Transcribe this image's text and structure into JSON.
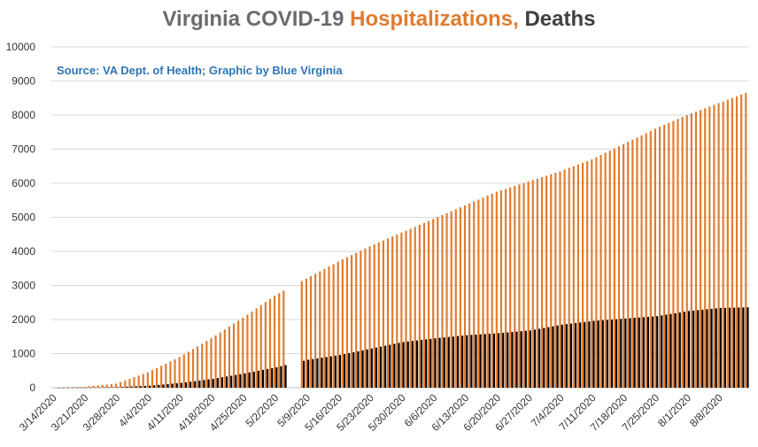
{
  "header": {
    "title_part1": "Virginia COVID-19 ",
    "title_part2": "Hospitalizations,",
    "title_part3": " Deaths",
    "source": "Source: VA Dept. of Health; Graphic by Blue Virginia"
  },
  "colors": {
    "hospitalizations": "#e07b2e",
    "deaths": "#000000",
    "grid": "#d9d9d9",
    "axis_text": "#333333"
  },
  "chart_data": {
    "type": "bar",
    "title": "Virginia COVID-19 Hospitalizations, Deaths",
    "ylim": [
      0,
      10000
    ],
    "y_ticks": [
      "0",
      "1000",
      "2000",
      "3000",
      "4000",
      "5000",
      "6000",
      "7000",
      "8000",
      "9000",
      "10000"
    ],
    "grid": true,
    "x_tick_labels": [
      "3/14/2020",
      "3/21/2020",
      "3/28/2020",
      "4/4/2020",
      "4/11/2020",
      "4/18/2020",
      "4/25/2020",
      "5/2/2020",
      "5/9/2020",
      "5/16/2020",
      "5/23/2020",
      "5/30/2020",
      "6/6/2020",
      "6/13/2020",
      "6/20/2020",
      "6/27/2020",
      "7/4/2020",
      "7/11/2020",
      "7/18/2020",
      "7/25/2020",
      "8/1/2020",
      "8/8/2020"
    ],
    "start_date": "3/14/2020",
    "end_date": "8/14/2020",
    "series": [
      {
        "name": "Hospitalizations",
        "color": "#e07b2e",
        "anchors": [
          [
            "3/14/2020",
            0
          ],
          [
            "3/21/2020",
            30
          ],
          [
            "3/28/2020",
            120
          ],
          [
            "4/4/2020",
            450
          ],
          [
            "4/11/2020",
            900
          ],
          [
            "4/18/2020",
            1450
          ],
          [
            "4/25/2020",
            2050
          ],
          [
            "5/2/2020",
            2700
          ],
          [
            "5/9/2020",
            3200
          ],
          [
            "5/16/2020",
            3700
          ],
          [
            "5/23/2020",
            4150
          ],
          [
            "5/30/2020",
            4550
          ],
          [
            "6/6/2020",
            4950
          ],
          [
            "6/13/2020",
            5350
          ],
          [
            "6/20/2020",
            5750
          ],
          [
            "6/27/2020",
            6050
          ],
          [
            "7/4/2020",
            6350
          ],
          [
            "7/11/2020",
            6700
          ],
          [
            "7/18/2020",
            7150
          ],
          [
            "7/25/2020",
            7600
          ],
          [
            "8/1/2020",
            8000
          ],
          [
            "8/8/2020",
            8350
          ],
          [
            "8/14/2020",
            8650
          ]
        ]
      },
      {
        "name": "Deaths",
        "color": "#000000",
        "anchors": [
          [
            "3/14/2020",
            0
          ],
          [
            "3/21/2020",
            5
          ],
          [
            "3/28/2020",
            15
          ],
          [
            "4/4/2020",
            60
          ],
          [
            "4/11/2020",
            140
          ],
          [
            "4/18/2020",
            260
          ],
          [
            "4/25/2020",
            420
          ],
          [
            "5/2/2020",
            600
          ],
          [
            "5/9/2020",
            820
          ],
          [
            "5/16/2020",
            960
          ],
          [
            "5/23/2020",
            1150
          ],
          [
            "5/30/2020",
            1340
          ],
          [
            "6/6/2020",
            1450
          ],
          [
            "6/13/2020",
            1540
          ],
          [
            "6/20/2020",
            1600
          ],
          [
            "6/27/2020",
            1680
          ],
          [
            "7/4/2020",
            1850
          ],
          [
            "7/11/2020",
            1960
          ],
          [
            "7/18/2020",
            2030
          ],
          [
            "7/25/2020",
            2100
          ],
          [
            "8/1/2020",
            2250
          ],
          [
            "8/8/2020",
            2340
          ],
          [
            "8/14/2020",
            2360
          ]
        ]
      }
    ],
    "missing_dates": [
      "5/5/2020",
      "5/6/2020",
      "5/7/2020"
    ]
  }
}
